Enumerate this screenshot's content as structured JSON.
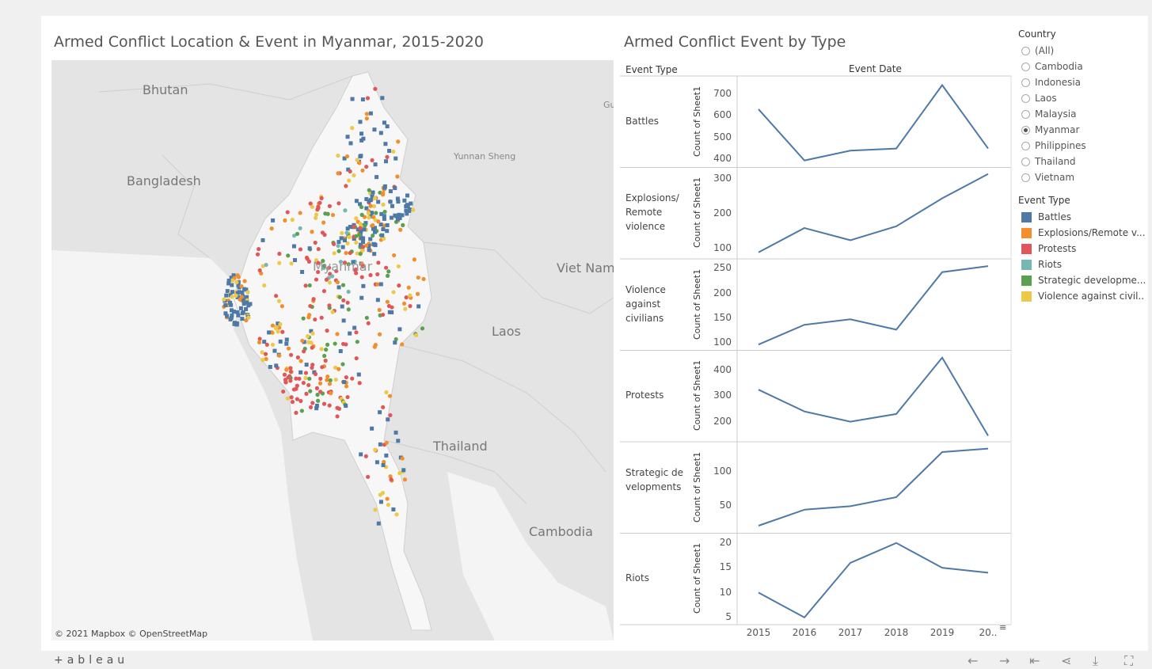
{
  "map": {
    "title": "Armed Conflict Location & Event in Myanmar, 2015-2020",
    "attribution": "© 2021 Mapbox  © OpenStreetMap",
    "labels": {
      "bhutan": "Bhutan",
      "bangladesh": "Bangladesh",
      "yunnan": "Yunnan Sheng",
      "viet_nam": "Viet Nam",
      "laos": "Laos",
      "thailand": "Thailand",
      "cambodia": "Cambodia",
      "gu": "Gu",
      "myanmar": "Myanmar"
    }
  },
  "chart_panel": {
    "title": "Armed Conflict Event by Type",
    "col_header_left": "Event Type",
    "col_header_top": "Event Date",
    "axis_title": "Count of Sheet1"
  },
  "chart_data": {
    "type": "line",
    "x": [
      "2015",
      "2016",
      "2017",
      "2018",
      "2019",
      "20.."
    ],
    "title": "Armed Conflict Event by Type",
    "xlabel": "Event Date",
    "ylabel": "Count of Sheet1",
    "panels": [
      {
        "name": "Battles",
        "values": [
          630,
          395,
          440,
          450,
          740,
          450
        ],
        "ylim": [
          385,
          760
        ],
        "ticks": [
          400,
          500,
          600,
          700
        ]
      },
      {
        "name": "Explosions/ Remote violence",
        "values": [
          90,
          160,
          125,
          165,
          245,
          315
        ],
        "ylim": [
          85,
          320
        ],
        "ticks": [
          100,
          200,
          300
        ]
      },
      {
        "name": "Violence against civilians",
        "values": [
          97,
          137,
          148,
          127,
          243,
          255
        ],
        "ylim": [
          95,
          260
        ],
        "ticks": [
          100,
          150,
          200,
          250
        ]
      },
      {
        "name": "Protests",
        "values": [
          325,
          240,
          200,
          230,
          450,
          145
        ],
        "ylim": [
          140,
          460
        ],
        "ticks": [
          200,
          300,
          400
        ]
      },
      {
        "name": "Strategic de velopments",
        "values": [
          22,
          45,
          50,
          63,
          128,
          133
        ],
        "ylim": [
          18,
          136
        ],
        "ticks": [
          50,
          100
        ]
      },
      {
        "name": "Riots",
        "values": [
          10,
          5,
          16,
          20,
          15,
          14
        ],
        "ylim": [
          4.5,
          21
        ],
        "ticks": [
          5,
          10,
          15,
          20
        ]
      }
    ]
  },
  "legend": {
    "country_title": "Country",
    "countries": [
      {
        "label": "(All)",
        "selected": false
      },
      {
        "label": "Cambodia",
        "selected": false
      },
      {
        "label": "Indonesia",
        "selected": false
      },
      {
        "label": "Laos",
        "selected": false
      },
      {
        "label": "Malaysia",
        "selected": false
      },
      {
        "label": "Myanmar",
        "selected": true
      },
      {
        "label": "Philippines",
        "selected": false
      },
      {
        "label": "Thailand",
        "selected": false
      },
      {
        "label": "Vietnam",
        "selected": false
      }
    ],
    "event_type_title": "Event Type",
    "event_types": [
      {
        "label": "Battles",
        "color": "#4e79a7"
      },
      {
        "label": "Explosions/Remote v...",
        "color": "#f28e2b"
      },
      {
        "label": "Protests",
        "color": "#e15759"
      },
      {
        "label": "Riots",
        "color": "#76b7b2"
      },
      {
        "label": "Strategic developme...",
        "color": "#59a14f"
      },
      {
        "label": "Violence against civil...",
        "color": "#edc948"
      }
    ]
  },
  "footer": {
    "brand": "+ableau"
  },
  "colors": {
    "line": "#4e79a7",
    "map_land": "#e8e8e8",
    "myanmar_land": "#f7f7f7"
  }
}
